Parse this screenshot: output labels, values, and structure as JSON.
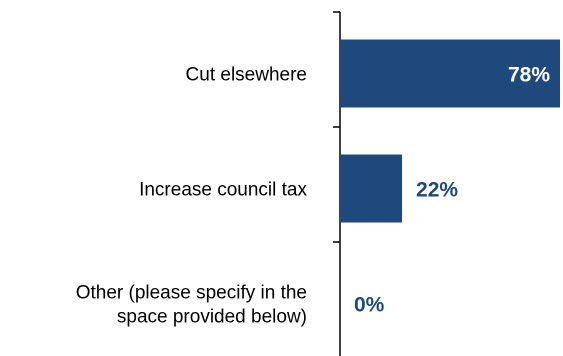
{
  "chart_data": {
    "type": "bar",
    "orientation": "horizontal",
    "categories": [
      [
        "Cut elsewhere"
      ],
      [
        "Increase council tax"
      ],
      [
        "Other (please specify in the",
        "space provided below)"
      ]
    ],
    "values": [
      78,
      22,
      0
    ],
    "value_labels": [
      "78%",
      "22%",
      "0%"
    ],
    "xlim": [
      0,
      78
    ],
    "grid": false,
    "legend": "none",
    "colors": {
      "bar": "#1F497D",
      "label_inside": "#FFFFFF",
      "label_outside": "#1F497D",
      "axis": "#000000"
    }
  }
}
